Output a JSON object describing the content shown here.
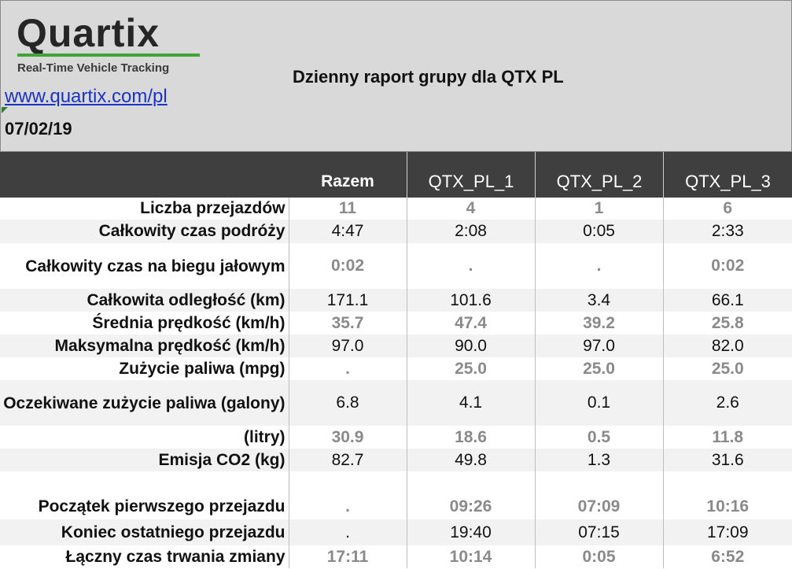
{
  "header": {
    "logo_text": "Quartix",
    "logo_tagline": "Real-Time Vehicle Tracking",
    "website": "www.quartix.com/pl",
    "date": "07/02/19",
    "title": "Dzienny raport grupy dla QTX PL"
  },
  "columns": [
    "Razem",
    "QTX_PL_1",
    "QTX_PL_2",
    "QTX_PL_3"
  ],
  "rows": [
    {
      "label": "Liczba przejazdów",
      "values": [
        "11",
        "4",
        "1",
        "6"
      ]
    },
    {
      "label": "Całkowity czas podróży",
      "values": [
        "4:47",
        "2:08",
        "0:05",
        "2:33"
      ]
    },
    {
      "label": "Całkowity czas na biegu jałowym",
      "values": [
        "0:02",
        ".",
        ".",
        "0:02"
      ]
    },
    {
      "label": "Całkowita odległość (km)",
      "values": [
        "171.1",
        "101.6",
        "3.4",
        "66.1"
      ]
    },
    {
      "label": "Średnia prędkość (km/h)",
      "values": [
        "35.7",
        "47.4",
        "39.2",
        "25.8"
      ]
    },
    {
      "label": "Maksymalna prędkość (km/h)",
      "values": [
        "97.0",
        "90.0",
        "97.0",
        "82.0"
      ]
    },
    {
      "label": "Zużycie paliwa (mpg)",
      "values": [
        ".",
        "25.0",
        "25.0",
        "25.0"
      ]
    },
    {
      "label": "Oczekiwane zużycie paliwa (galony)",
      "values": [
        "6.8",
        "4.1",
        "0.1",
        "2.6"
      ]
    },
    {
      "label": "(litry)",
      "values": [
        "30.9",
        "18.6",
        "0.5",
        "11.8"
      ]
    },
    {
      "label": "Emisja CO2 (kg)",
      "values": [
        "82.7",
        "49.8",
        "1.3",
        "31.6"
      ]
    },
    {
      "label": "Początek pierwszego przejazdu",
      "values": [
        ".",
        "09:26",
        "07:09",
        "10:16"
      ]
    },
    {
      "label": "Koniec ostatniego przejazdu",
      "values": [
        ".",
        "19:40",
        "07:15",
        "17:09"
      ]
    },
    {
      "label": "Łączny czas trwania zmiany",
      "values": [
        "17:11",
        "10:14",
        "0:05",
        "6:52"
      ]
    }
  ]
}
